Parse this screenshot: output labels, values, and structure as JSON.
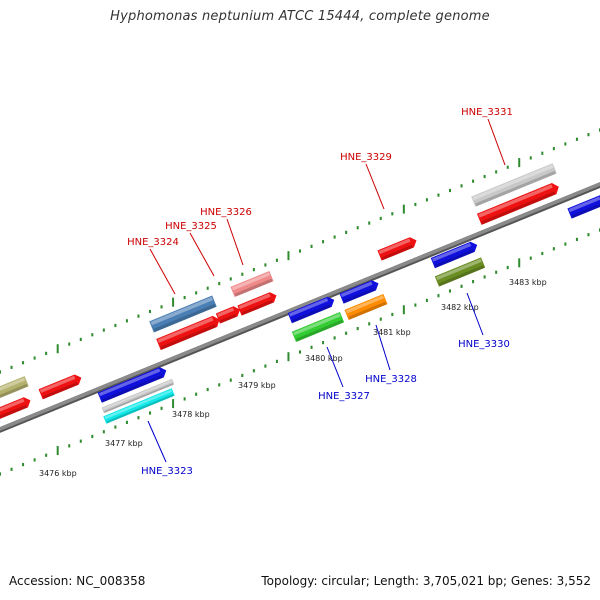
{
  "title": "Hyphomonas neptunium ATCC 15444, complete genome",
  "footer": {
    "accession": "Accession: NC_008358",
    "summary": "Topology: circular; Length: 3,705,021 bp; Genes: 3,552"
  },
  "colors": {
    "backbone": "#8a8a8a",
    "tick": "#2e8b2e",
    "label_top": "#cc0000",
    "label_bottom": "#0000cc"
  },
  "kbp_labels": [
    {
      "id": "3476",
      "text": "3476 kbp"
    },
    {
      "id": "3477",
      "text": "3477 kbp"
    },
    {
      "id": "3478",
      "text": "3478 kbp"
    },
    {
      "id": "3479",
      "text": "3479 kbp"
    },
    {
      "id": "3480",
      "text": "3480 kbp"
    },
    {
      "id": "3481",
      "text": "3481 kbp"
    },
    {
      "id": "3482",
      "text": "3482 kbp"
    },
    {
      "id": "3483",
      "text": "3483 kbp"
    }
  ],
  "gene_labels": [
    {
      "id": "HNE_3324",
      "text": "HNE_3324",
      "strand": "top"
    },
    {
      "id": "HNE_3325",
      "text": "HNE_3325",
      "strand": "top"
    },
    {
      "id": "HNE_3326",
      "text": "HNE_3326",
      "strand": "top"
    },
    {
      "id": "HNE_3329",
      "text": "HNE_3329",
      "strand": "top"
    },
    {
      "id": "HNE_3331",
      "text": "HNE_3331",
      "strand": "top"
    },
    {
      "id": "HNE_3323",
      "text": "HNE_3323",
      "strand": "bottom"
    },
    {
      "id": "HNE_3327",
      "text": "HNE_3327",
      "strand": "bottom"
    },
    {
      "id": "HNE_3328",
      "text": "HNE_3328",
      "strand": "bottom"
    },
    {
      "id": "HNE_3330",
      "text": "HNE_3330",
      "strand": "bottom"
    }
  ],
  "features": [
    {
      "name": "feature-olive-left",
      "color": "#b5b26e"
    },
    {
      "name": "feature-red-left-a",
      "color": "#ee1111"
    },
    {
      "name": "feature-red-left-b",
      "color": "#ee1111"
    },
    {
      "name": "feature-blue-3322",
      "color": "#1010dd"
    },
    {
      "name": "feature-grey-3322",
      "color": "#c8c8c8"
    },
    {
      "name": "feature-cyan-3323",
      "color": "#11e8e8"
    },
    {
      "name": "feature-steelblue-3324",
      "color": "#4a7fb5"
    },
    {
      "name": "feature-red-3324",
      "color": "#ee1111"
    },
    {
      "name": "feature-red-3325",
      "color": "#ee1111"
    },
    {
      "name": "feature-pink-3326",
      "color": "#f08a8a"
    },
    {
      "name": "feature-red-3326",
      "color": "#ee1111"
    },
    {
      "name": "feature-blue-3327a",
      "color": "#1010dd"
    },
    {
      "name": "feature-green-3327",
      "color": "#33cc33"
    },
    {
      "name": "feature-blue-3328a",
      "color": "#1010dd"
    },
    {
      "name": "feature-orange-3328",
      "color": "#ff8c00"
    },
    {
      "name": "feature-red-3329",
      "color": "#ee1111"
    },
    {
      "name": "feature-blue-3330",
      "color": "#1010dd"
    },
    {
      "name": "feature-olive-3330",
      "color": "#6b8e23"
    },
    {
      "name": "feature-grey-3331",
      "color": "#c8c8c8"
    },
    {
      "name": "feature-red-3331",
      "color": "#ee1111"
    },
    {
      "name": "feature-blue-right",
      "color": "#1010dd"
    }
  ]
}
